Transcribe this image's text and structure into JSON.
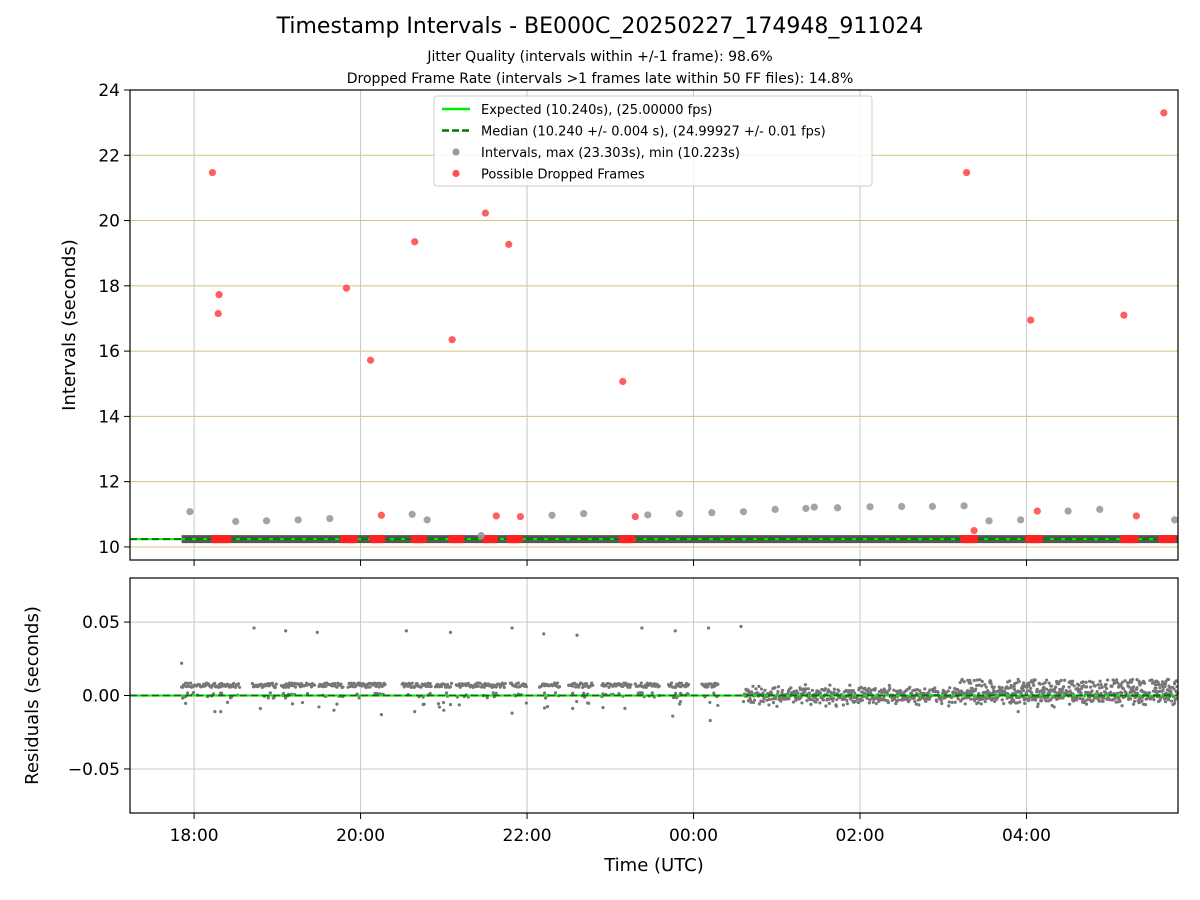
{
  "chart_data": {
    "title": "Timestamp Intervals - BE000C_20250227_174948_911024",
    "subtitle_jitter": "Jitter Quality (intervals within +/-1 frame): 98.6%",
    "subtitle_dropped": "Dropped Frame Rate (intervals >1 frames late within 50 FF files): 14.8%",
    "xlabel": "Time (UTC)",
    "x_ticks": [
      "18:00",
      "20:00",
      "22:00",
      "00:00",
      "02:00",
      "04:00"
    ],
    "x_tick_hours": [
      18,
      20,
      22,
      24,
      26,
      28
    ],
    "xlim_hours": [
      17.23,
      29.82
    ],
    "top": {
      "type": "scatter",
      "ylabel": "Intervals (seconds)",
      "ylim": [
        9.6,
        24
      ],
      "y_ticks": [
        10,
        12,
        14,
        16,
        18,
        20,
        22,
        24
      ],
      "grid": true,
      "legend_position": "upper center",
      "expected_interval": 10.24,
      "median_interval": 10.24,
      "legend": [
        {
          "label": "Expected (10.240s), (25.00000 fps)",
          "kind": "line",
          "color": "#00ee00"
        },
        {
          "label": "Median (10.240 +/- 0.004 s), (24.99927 +/- 0.01 fps)",
          "kind": "dashed",
          "color": "#007700"
        },
        {
          "label": "Intervals, max (23.303s), min (10.223s)",
          "kind": "dot",
          "color": "#9a9a9a"
        },
        {
          "label": "Possible Dropped Frames",
          "kind": "dot",
          "color": "#ff4d4d"
        }
      ],
      "normal_points": [
        [
          17.95,
          11.08
        ],
        [
          18.5,
          10.78
        ],
        [
          18.87,
          10.8
        ],
        [
          19.25,
          10.83
        ],
        [
          19.63,
          10.87
        ],
        [
          20.62,
          11.0
        ],
        [
          20.8,
          10.83
        ],
        [
          21.45,
          10.35
        ],
        [
          22.3,
          10.97
        ],
        [
          22.68,
          11.02
        ],
        [
          23.45,
          10.98
        ],
        [
          23.83,
          11.02
        ],
        [
          24.22,
          11.05
        ],
        [
          24.6,
          11.08
        ],
        [
          24.98,
          11.15
        ],
        [
          25.35,
          11.18
        ],
        [
          25.45,
          11.22
        ],
        [
          25.73,
          11.2
        ],
        [
          26.12,
          11.23
        ],
        [
          26.5,
          11.24
        ],
        [
          26.87,
          11.24
        ],
        [
          27.25,
          11.26
        ],
        [
          27.55,
          10.8
        ],
        [
          27.93,
          10.83
        ],
        [
          28.5,
          11.1
        ],
        [
          28.88,
          11.15
        ],
        [
          29.78,
          10.83
        ]
      ],
      "dropped_points": [
        [
          18.22,
          21.47
        ],
        [
          18.3,
          17.73
        ],
        [
          18.29,
          17.15
        ],
        [
          19.83,
          17.93
        ],
        [
          20.12,
          15.72
        ],
        [
          20.65,
          19.35
        ],
        [
          21.1,
          16.35
        ],
        [
          21.5,
          20.23
        ],
        [
          21.78,
          19.27
        ],
        [
          20.25,
          10.97
        ],
        [
          21.63,
          10.95
        ],
        [
          21.92,
          10.93
        ],
        [
          23.15,
          15.07
        ],
        [
          23.3,
          10.93
        ],
        [
          27.28,
          21.47
        ],
        [
          27.37,
          10.5
        ],
        [
          28.05,
          16.95
        ],
        [
          28.13,
          11.1
        ],
        [
          29.17,
          17.1
        ],
        [
          29.32,
          10.95
        ],
        [
          29.65,
          23.3
        ]
      ],
      "dropped_bands": [
        [
          18.2,
          18.45
        ],
        [
          19.75,
          19.97
        ],
        [
          20.1,
          20.3
        ],
        [
          20.6,
          20.8
        ],
        [
          21.05,
          21.25
        ],
        [
          21.45,
          21.65
        ],
        [
          21.75,
          21.95
        ],
        [
          23.1,
          23.3
        ],
        [
          27.2,
          27.42
        ],
        [
          27.98,
          28.2
        ],
        [
          29.12,
          29.35
        ],
        [
          29.58,
          29.8
        ]
      ],
      "interval_band": [
        17.85,
        29.82
      ]
    },
    "bottom": {
      "type": "scatter",
      "ylabel": "Residuals (seconds)",
      "ylim": [
        -0.08,
        0.08
      ],
      "y_ticks": [
        0.05,
        0.0,
        -0.05
      ],
      "y_tick_labels": [
        "0.05",
        "0.00",
        "−0.05"
      ],
      "grid": true,
      "baseline": 0.0,
      "outliers": [
        [
          17.85,
          0.022
        ],
        [
          18.72,
          0.046
        ],
        [
          19.1,
          0.044
        ],
        [
          19.48,
          0.043
        ],
        [
          20.55,
          0.044
        ],
        [
          21.08,
          0.043
        ],
        [
          21.82,
          0.046
        ],
        [
          22.2,
          0.042
        ],
        [
          22.6,
          0.041
        ],
        [
          23.38,
          0.046
        ],
        [
          23.78,
          0.044
        ],
        [
          24.18,
          0.046
        ],
        [
          24.57,
          0.047
        ],
        [
          18.25,
          -0.011
        ],
        [
          18.32,
          -0.011
        ],
        [
          19.68,
          -0.01
        ],
        [
          20.25,
          -0.013
        ],
        [
          20.65,
          -0.011
        ],
        [
          21.0,
          -0.01
        ],
        [
          21.82,
          -0.012
        ],
        [
          23.75,
          -0.014
        ],
        [
          24.2,
          -0.017
        ],
        [
          27.9,
          -0.011
        ]
      ]
    },
    "colors": {
      "expected": "#00ee00",
      "median": "#007700",
      "interval": "#9a9a9a",
      "dropped": "#ff4d4d",
      "residual": "#777777",
      "hgrid_top": "#d8c17e",
      "grid": "#c8c8c8"
    }
  }
}
